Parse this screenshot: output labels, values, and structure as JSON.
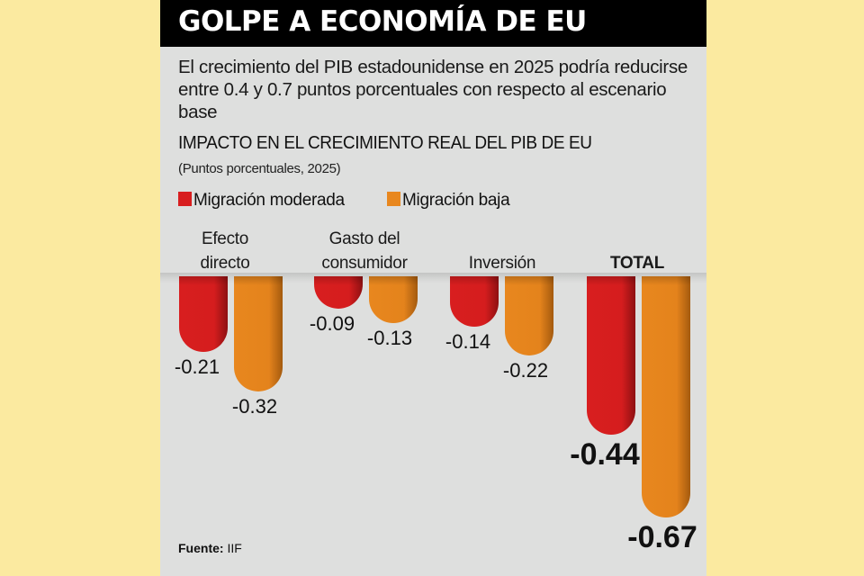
{
  "header": {
    "title": "GOLPE A ECONOMÍA DE EU"
  },
  "subtitle": "El crecimiento del PIB estadounidense en 2025 podría reducirse entre 0.4 y 0.7 puntos porcentuales con respecto al escenario base",
  "source": {
    "label": "Fuente:",
    "value": "IIF"
  },
  "colors": {
    "background": "#fbeaa0",
    "panel": "#dedfde",
    "header": "#000000",
    "moderada": "#d81e1f",
    "baja": "#e8871e"
  },
  "chart_data": {
    "type": "bar",
    "title": "IMPACTO EN EL CRECIMIENTO REAL DEL PIB DE EU",
    "subtitle": "(Puntos porcentuales, 2025)",
    "xlabel": "",
    "ylabel": "Puntos porcentuales",
    "ylim": [
      -0.7,
      0
    ],
    "grid": false,
    "legend_position": "top-left",
    "categories": [
      "Efecto directo",
      "Gasto del consumidor",
      "Inversión",
      "TOTAL"
    ],
    "category_lines": [
      [
        "Efecto",
        "directo"
      ],
      [
        "Gasto del",
        "consumidor"
      ],
      [
        "Inversión"
      ],
      [
        "TOTAL"
      ]
    ],
    "series": [
      {
        "name": "Migración moderada",
        "color": "#d81e1f",
        "values": [
          -0.21,
          -0.09,
          -0.14,
          -0.44
        ],
        "labels": [
          "-0.21",
          "-0.09",
          "-0.14",
          "-0.44"
        ]
      },
      {
        "name": "Migración baja",
        "color": "#e8871e",
        "values": [
          -0.32,
          -0.13,
          -0.22,
          -0.67
        ],
        "labels": [
          "-0.32",
          "-0.13",
          "-0.22",
          "-0.67"
        ]
      }
    ]
  }
}
